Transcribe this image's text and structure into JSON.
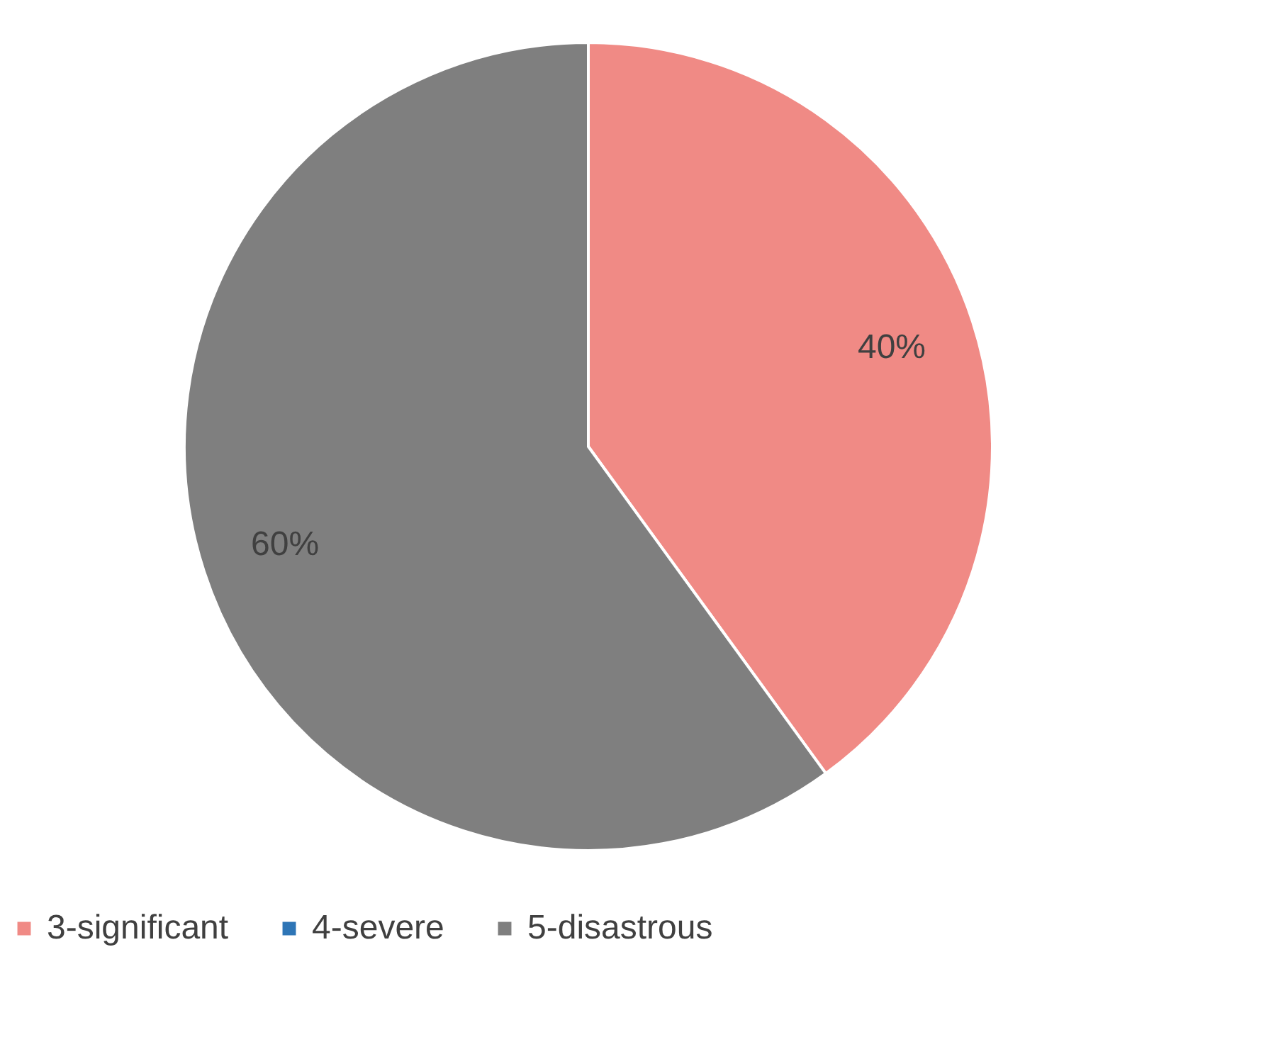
{
  "chart_data": {
    "type": "pie",
    "categories": [
      "3-significant",
      "4-severe",
      "5-disastrous"
    ],
    "values": [
      40,
      0,
      60
    ],
    "colors": [
      "#f08a85",
      "#2e75b6",
      "#7f7f7f"
    ],
    "value_labels": [
      "40%",
      null,
      "60%"
    ],
    "legend": "bottom"
  }
}
